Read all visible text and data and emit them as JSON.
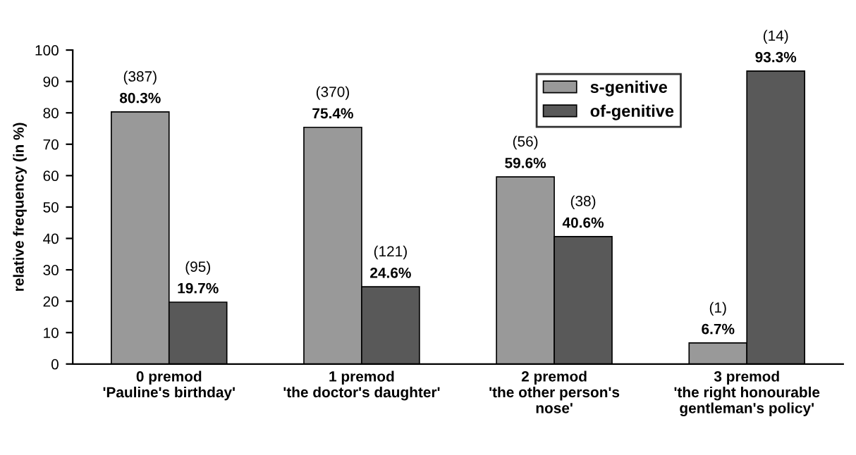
{
  "chart_data": {
    "type": "bar",
    "ylabel": "relative frequency (in %)",
    "categories": [
      "0 premod\n'Pauline's birthday'",
      "1 premod\n'the doctor's daughter'",
      "2 premod\n'the other person's\nnose'",
      "3 premod\n'the right honourable\ngentleman's policy'"
    ],
    "series": [
      {
        "name": "s-genitive",
        "color": "#999999",
        "values": [
          80.3,
          75.4,
          59.6,
          6.7
        ],
        "value_labels": [
          "(387)\n80.3%",
          "(370)\n75.4%",
          "(56)\n59.6%",
          "(1)\n6.7%"
        ]
      },
      {
        "name": "of-genitive",
        "color": "#595959",
        "values": [
          19.7,
          24.6,
          40.6,
          93.3
        ],
        "value_labels": [
          "(95)\n19.7%",
          "(121)\n24.6%",
          "(38)\n40.6%",
          "(14)\n93.3%"
        ]
      }
    ],
    "ylim": [
      0,
      100
    ],
    "yticks": [
      0,
      10,
      20,
      30,
      40,
      50,
      60,
      70,
      80,
      90,
      100
    ],
    "grid": false,
    "legend": "top right"
  }
}
